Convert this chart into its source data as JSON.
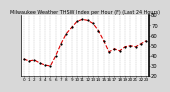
{
  "title": "Milwaukee Weather THSW Index per Hour (F) (Last 24 Hours)",
  "background_color": "#d8d8d8",
  "plot_bg_color": "#ffffff",
  "line_color": "#dd0000",
  "marker_color": "#000000",
  "grid_color": "#aaaaaa",
  "hours": [
    0,
    1,
    2,
    3,
    4,
    5,
    6,
    7,
    8,
    9,
    10,
    11,
    12,
    13,
    14,
    15,
    16,
    17,
    18,
    19,
    20,
    21,
    22,
    23
  ],
  "values": [
    37,
    35,
    36,
    33,
    31,
    30,
    40,
    52,
    62,
    68,
    74,
    76,
    75,
    72,
    65,
    55,
    44,
    47,
    45,
    49,
    50,
    49,
    52,
    55
  ],
  "ylim": [
    20,
    80
  ],
  "yticks": [
    20,
    30,
    40,
    50,
    60,
    70,
    80
  ],
  "ylabel_fontsize": 3.8,
  "title_fontsize": 3.5,
  "xlabel_fontsize": 3.0,
  "linewidth": 0.8,
  "markersize": 1.2,
  "linestyle": "--"
}
